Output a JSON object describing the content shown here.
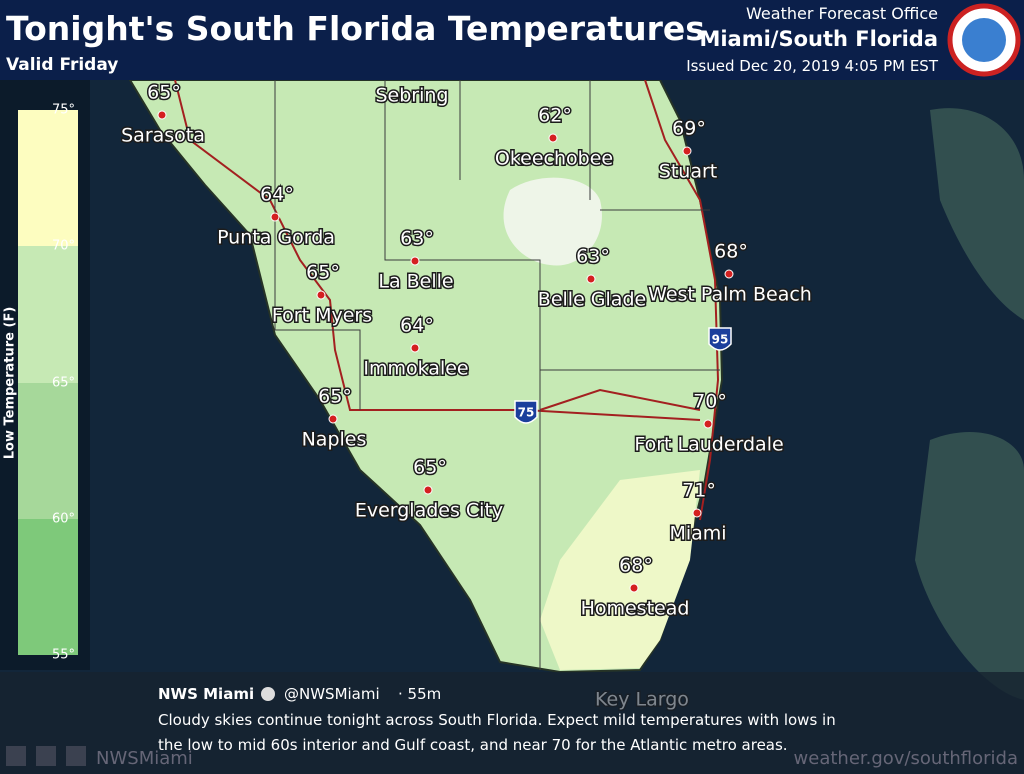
{
  "header": {
    "title": "Tonight's South Florida Temperatures",
    "subtitle": "Valid Friday",
    "office": "Weather Forecast Office",
    "office_name": "Miami/South Florida",
    "issued": "Issued Dec 20, 2019 4:05 PM EST"
  },
  "legend": {
    "title": "Low Temperature (F)",
    "labels": [
      "75°",
      "70°",
      "65°",
      "60°",
      "55°"
    ]
  },
  "cities": [
    {
      "name": "Sarasota",
      "temp": "65°"
    },
    {
      "name": "Punta Gorda",
      "temp": "64°"
    },
    {
      "name": "Fort Myers",
      "temp": "65°"
    },
    {
      "name": "Naples",
      "temp": "65°"
    },
    {
      "name": "Everglades City",
      "temp": "65°"
    },
    {
      "name": "Immokalee",
      "temp": "64°"
    },
    {
      "name": "La Belle",
      "temp": "63°"
    },
    {
      "name": "Okeechobee",
      "temp": "62°"
    },
    {
      "name": "Belle Glade",
      "temp": "63°"
    },
    {
      "name": "Stuart",
      "temp": "69°"
    },
    {
      "name": "West Palm Beach",
      "temp": "68°"
    },
    {
      "name": "Fort Lauderdale",
      "temp": "70°"
    },
    {
      "name": "Miami",
      "temp": "71°"
    },
    {
      "name": "Homestead",
      "temp": "68°"
    }
  ],
  "places": [
    "Sebring",
    "Key Largo"
  ],
  "highways": [
    "75",
    "95"
  ],
  "tweet": {
    "author": "NWS Miami",
    "handle": "@NWSMiami",
    "time": "· 55m",
    "lines": [
      "Cloudy skies continue tonight across South Florida. Expect mild temperatures with lows in",
      "the low to mid 60s interior and Gulf coast, and near 70 for the Atlantic metro areas."
    ]
  },
  "footer": {
    "social": "NWSMiami",
    "url": "weather.gov/southflorida"
  }
}
